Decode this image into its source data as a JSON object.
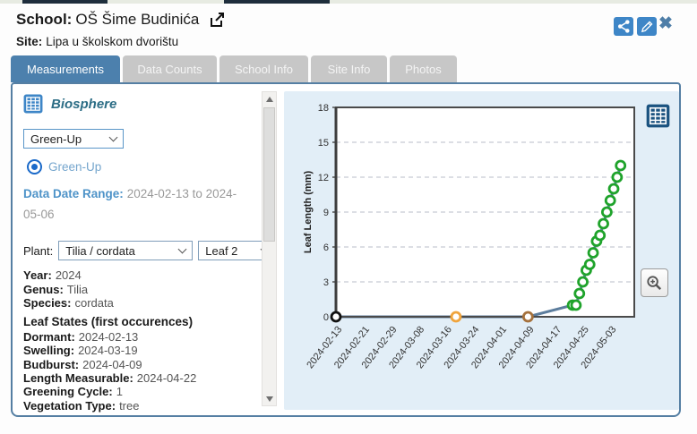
{
  "header": {
    "school_label": "School:",
    "school_name": "OŠ Šime Budinića",
    "site_label": "Site:",
    "site_name": "Lipa u školskom dvorištu"
  },
  "tabs": [
    {
      "label": "Measurements",
      "active": true
    },
    {
      "label": "Data Counts",
      "active": false
    },
    {
      "label": "School Info",
      "active": false
    },
    {
      "label": "Site Info",
      "active": false
    },
    {
      "label": "Photos",
      "active": false
    }
  ],
  "sidebar": {
    "section_title": "Biosphere",
    "protocol_select_value": "Green-Up",
    "radio_label": "Green-Up",
    "date_range_label": "Data Date Range:",
    "date_range_value": "2024-02-13 to 2024-05-06",
    "plant_label": "Plant:",
    "plant_select_value": "Tilia / cordata",
    "leaf_select_value": "Leaf 2",
    "info": [
      {
        "label": "Year:",
        "value": "2024"
      },
      {
        "label": "Genus:",
        "value": "Tilia"
      },
      {
        "label": "Species:",
        "value": "cordata"
      }
    ],
    "leaf_states_title": "Leaf States (first occurences)",
    "leaf_states": [
      {
        "label": "Dormant:",
        "value": "2024-02-13"
      },
      {
        "label": "Swelling:",
        "value": "2024-03-19"
      },
      {
        "label": "Budburst:",
        "value": "2024-04-09"
      },
      {
        "label": "Length Measurable:",
        "value": "2024-04-22"
      }
    ],
    "extra": [
      {
        "label": "Greening Cycle:",
        "value": "1"
      },
      {
        "label": "Vegetation Type:",
        "value": "tree"
      }
    ]
  },
  "chart_data": {
    "type": "line",
    "title": "",
    "xlabel": "",
    "ylabel": "Leaf Length (mm)",
    "ylim": [
      0,
      18
    ],
    "ytick_interval": 3,
    "grid": "horizontal-dashed",
    "grid_color": "#b9bec9",
    "frame_color": "#4a4a4a",
    "x_domain_days": [
      0,
      87
    ],
    "x_ticks": [
      {
        "day": 0,
        "label": "2024-02-13"
      },
      {
        "day": 8,
        "label": "2024-02-21"
      },
      {
        "day": 16,
        "label": "2024-02-29"
      },
      {
        "day": 24,
        "label": "2024-03-08"
      },
      {
        "day": 32,
        "label": "2024-03-16"
      },
      {
        "day": 40,
        "label": "2024-03-24"
      },
      {
        "day": 48,
        "label": "2024-04-01"
      },
      {
        "day": 56,
        "label": "2024-04-09"
      },
      {
        "day": 64,
        "label": "2024-04-17"
      },
      {
        "day": 72,
        "label": "2024-04-25"
      },
      {
        "day": 80,
        "label": "2024-05-03"
      }
    ],
    "series": [
      {
        "name": "Leaf 2 length",
        "line_color": "#5c7d9d",
        "points": [
          {
            "date": "2024-02-13",
            "day": 0,
            "value": 0,
            "color": "#111111",
            "state": "Dormant"
          },
          {
            "date": "2024-03-19",
            "day": 35,
            "value": 0,
            "color": "#f0a43c",
            "state": "Swelling"
          },
          {
            "date": "2024-04-09",
            "day": 56,
            "value": 0,
            "color": "#a5713c",
            "state": "Budburst"
          },
          {
            "date": "2024-04-22",
            "day": 69,
            "value": 1,
            "color": "#1fa32b"
          },
          {
            "date": "2024-04-23",
            "day": 70,
            "value": 1,
            "color": "#1fa32b"
          },
          {
            "date": "2024-04-24",
            "day": 71,
            "value": 2,
            "color": "#1fa32b"
          },
          {
            "date": "2024-04-25",
            "day": 72,
            "value": 3,
            "color": "#1fa32b"
          },
          {
            "date": "2024-04-26",
            "day": 73,
            "value": 4,
            "color": "#1fa32b"
          },
          {
            "date": "2024-04-27",
            "day": 74,
            "value": 4.5,
            "color": "#1fa32b"
          },
          {
            "date": "2024-04-28",
            "day": 75,
            "value": 5.5,
            "color": "#1fa32b"
          },
          {
            "date": "2024-04-29",
            "day": 76,
            "value": 6.5,
            "color": "#1fa32b"
          },
          {
            "date": "2024-04-30",
            "day": 77,
            "value": 7,
            "color": "#1fa32b"
          },
          {
            "date": "2024-05-01",
            "day": 78,
            "value": 8,
            "color": "#1fa32b"
          },
          {
            "date": "2024-05-02",
            "day": 79,
            "value": 9,
            "color": "#1fa32b"
          },
          {
            "date": "2024-05-03",
            "day": 80,
            "value": 10,
            "color": "#1fa32b"
          },
          {
            "date": "2024-05-04",
            "day": 81,
            "value": 11,
            "color": "#1fa32b"
          },
          {
            "date": "2024-05-05",
            "day": 82,
            "value": 12,
            "color": "#1fa32b"
          },
          {
            "date": "2024-05-06",
            "day": 83,
            "value": 13,
            "color": "#1fa32b"
          }
        ]
      }
    ]
  },
  "colors": {
    "accent_blue": "#4c80ad",
    "icon_blue": "#3e86c7",
    "dark_table_icon": "#1b5380",
    "panel_border": "#557fa3",
    "chart_bg": "#e2eef7",
    "green": "#1fa32b",
    "orange": "#f0a43c",
    "brown": "#a5713c",
    "black_marker": "#111111",
    "line": "#5c7d9d"
  }
}
